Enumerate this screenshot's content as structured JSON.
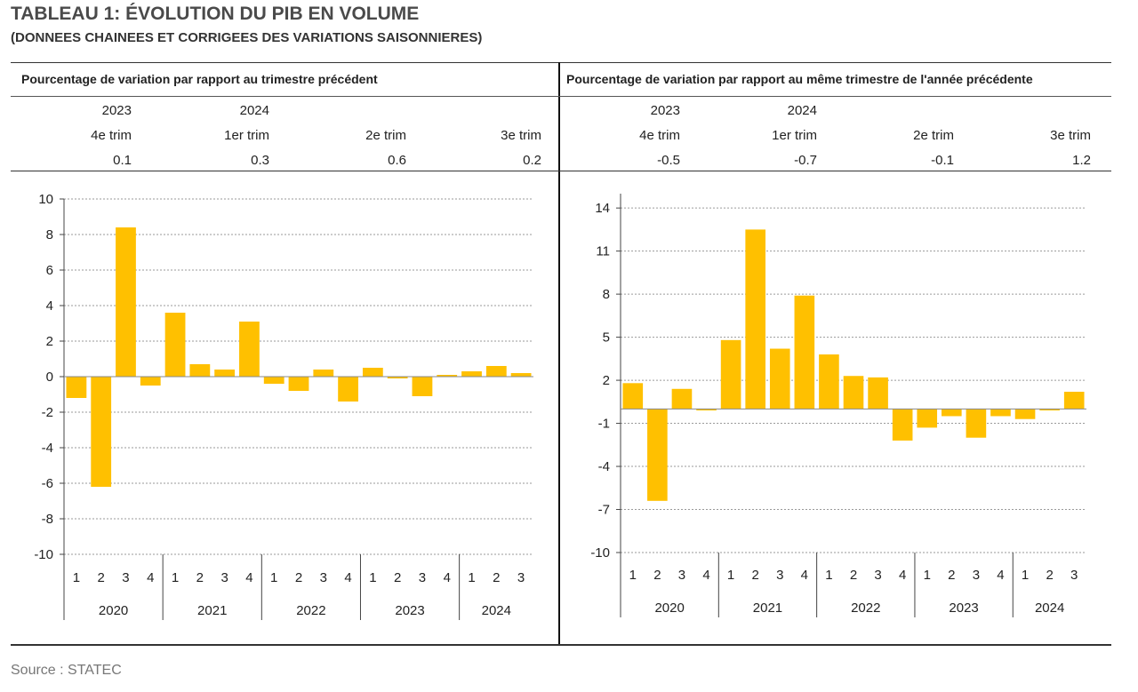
{
  "title": "TABLEAU 1: ÉVOLUTION DU PIB EN VOLUME",
  "subtitle": "(DONNEES CHAINEES ET CORRIGEES DES VARIATIONS SAISONNIERES)",
  "source": "Source : STATEC",
  "bar_color": "#ffc000",
  "panels": {
    "left": {
      "header": "Pourcentage de variation par rapport au trimestre précédent",
      "summary": {
        "years": [
          "2023",
          "2024",
          "",
          ""
        ],
        "quarters": [
          "4e trim",
          "1er trim",
          "2e trim",
          "3e trim"
        ],
        "values": [
          "0.1",
          "0.3",
          "0.6",
          "0.2"
        ]
      }
    },
    "right": {
      "header": "Pourcentage de variation par rapport au même trimestre de l'année précédente",
      "summary": {
        "years": [
          "2023",
          "2024",
          "",
          ""
        ],
        "quarters": [
          "4e trim",
          "1er trim",
          "2e trim",
          "3e trim"
        ],
        "values": [
          "-0.5",
          "-0.7",
          "-0.1",
          "1.2"
        ]
      }
    }
  },
  "chart_data": [
    {
      "type": "bar",
      "quarter_labels": [
        "1",
        "2",
        "3",
        "4",
        "1",
        "2",
        "3",
        "4",
        "1",
        "2",
        "3",
        "4",
        "1",
        "2",
        "3",
        "4",
        "1",
        "2",
        "3"
      ],
      "year_groups": [
        {
          "label": "2020",
          "quarters": 4
        },
        {
          "label": "2021",
          "quarters": 4
        },
        {
          "label": "2022",
          "quarters": 4
        },
        {
          "label": "2023",
          "quarters": 4
        },
        {
          "label": "2024",
          "quarters": 3
        }
      ],
      "values": [
        -1.2,
        -6.2,
        8.4,
        -0.5,
        3.6,
        0.7,
        0.4,
        3.1,
        -0.4,
        -0.8,
        0.4,
        -1.4,
        0.5,
        -0.1,
        -1.1,
        0.1,
        0.3,
        0.6,
        0.2
      ],
      "ylim": [
        -10,
        10
      ],
      "yticks": [
        10,
        8,
        6,
        4,
        2,
        0,
        -2,
        -4,
        -6,
        -8,
        -10
      ],
      "grid": true
    },
    {
      "type": "bar",
      "quarter_labels": [
        "1",
        "2",
        "3",
        "4",
        "1",
        "2",
        "3",
        "4",
        "1",
        "2",
        "3",
        "4",
        "1",
        "2",
        "3",
        "4",
        "1",
        "2",
        "3"
      ],
      "year_groups": [
        {
          "label": "2020",
          "quarters": 4
        },
        {
          "label": "2021",
          "quarters": 4
        },
        {
          "label": "2022",
          "quarters": 4
        },
        {
          "label": "2023",
          "quarters": 4
        },
        {
          "label": "2024",
          "quarters": 3
        }
      ],
      "values": [
        1.8,
        -6.4,
        1.4,
        -0.1,
        4.8,
        12.5,
        4.2,
        7.9,
        3.8,
        2.3,
        2.2,
        -2.2,
        -1.3,
        -0.5,
        -2.0,
        -0.5,
        -0.7,
        -0.1,
        1.2
      ],
      "ylim": [
        -10,
        15
      ],
      "yticks": [
        14,
        11,
        8,
        5,
        2,
        -1,
        -4,
        -7,
        -10
      ],
      "grid": true
    }
  ]
}
